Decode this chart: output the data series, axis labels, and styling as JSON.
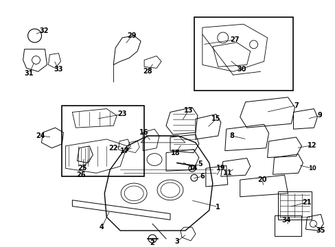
{
  "bg_color": "#ffffff",
  "figsize": [
    4.89,
    3.6
  ],
  "dpi": 100,
  "image_b64": ""
}
